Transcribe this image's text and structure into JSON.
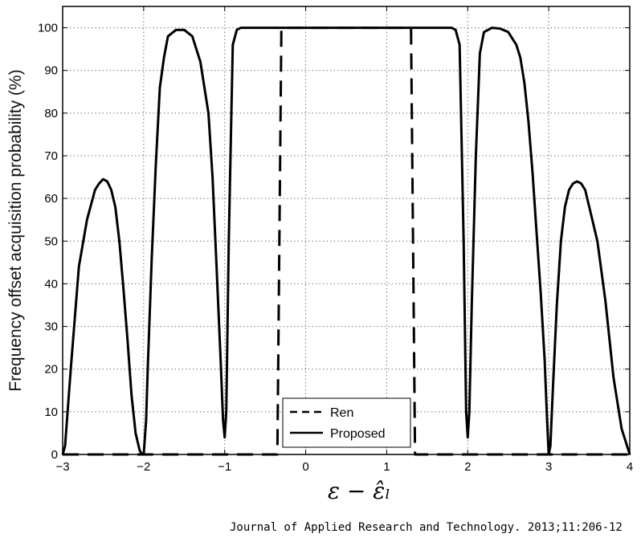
{
  "chart_data": {
    "type": "line",
    "title": "",
    "xlabel": "ε − ε̂ₗ",
    "ylabel": "Frequency offset acquisition probability (%)",
    "xlim": [
      -3,
      4
    ],
    "ylim": [
      0,
      105
    ],
    "xticks": [
      -3,
      -2,
      -1,
      0,
      1,
      2,
      3,
      4
    ],
    "yticks": [
      0,
      10,
      20,
      30,
      40,
      50,
      60,
      70,
      80,
      90,
      100
    ],
    "grid": true,
    "legend_position": "bottom-center",
    "series": [
      {
        "name": "Ren",
        "style": "dashed",
        "color": "#000000",
        "x": [
          -3,
          -0.35,
          -0.3,
          1.3,
          1.35,
          4
        ],
        "y": [
          0,
          0,
          100,
          100,
          0,
          0
        ]
      },
      {
        "name": "Proposed",
        "style": "solid",
        "color": "#000000",
        "x": [
          -3,
          -2.97,
          -2.9,
          -2.8,
          -2.7,
          -2.6,
          -2.55,
          -2.5,
          -2.45,
          -2.4,
          -2.35,
          -2.3,
          -2.25,
          -2.2,
          -2.15,
          -2.1,
          -2.05,
          -2.02,
          -2.0,
          -1.97,
          -1.95,
          -1.9,
          -1.85,
          -1.8,
          -1.75,
          -1.7,
          -1.6,
          -1.5,
          -1.4,
          -1.3,
          -1.2,
          -1.15,
          -1.1,
          -1.05,
          -1.02,
          -1.0,
          -0.98,
          -0.95,
          -0.9,
          -0.85,
          -0.8,
          1.8,
          1.85,
          1.9,
          1.95,
          1.98,
          2.0,
          2.02,
          2.05,
          2.1,
          2.15,
          2.2,
          2.3,
          2.4,
          2.5,
          2.6,
          2.65,
          2.7,
          2.75,
          2.8,
          2.85,
          2.9,
          2.95,
          2.98,
          3.0,
          3.02,
          3.05,
          3.1,
          3.15,
          3.2,
          3.25,
          3.3,
          3.35,
          3.4,
          3.45,
          3.5,
          3.6,
          3.7,
          3.8,
          3.9,
          3.95,
          4.0
        ],
        "y": [
          0,
          2,
          20,
          44,
          55,
          62,
          63.5,
          64.5,
          64,
          62,
          58,
          50,
          39,
          27,
          14,
          5,
          1,
          0,
          0,
          8,
          20,
          46,
          68,
          86,
          93,
          98,
          99.5,
          99.5,
          98,
          92,
          80,
          65,
          44,
          22,
          8,
          4,
          10,
          50,
          96,
          99.5,
          100,
          100,
          99.5,
          96,
          50,
          10,
          4,
          10,
          35,
          70,
          94,
          99,
          100,
          99.8,
          99,
          96,
          93,
          87,
          78,
          66,
          52,
          38,
          22,
          8,
          0,
          2,
          15,
          35,
          50,
          58,
          62,
          63.5,
          64,
          63.5,
          62,
          58,
          50,
          36,
          18,
          6,
          3,
          0
        ]
      }
    ]
  },
  "caption": "Journal of Applied Research and Technology. 2013;11:206-12"
}
